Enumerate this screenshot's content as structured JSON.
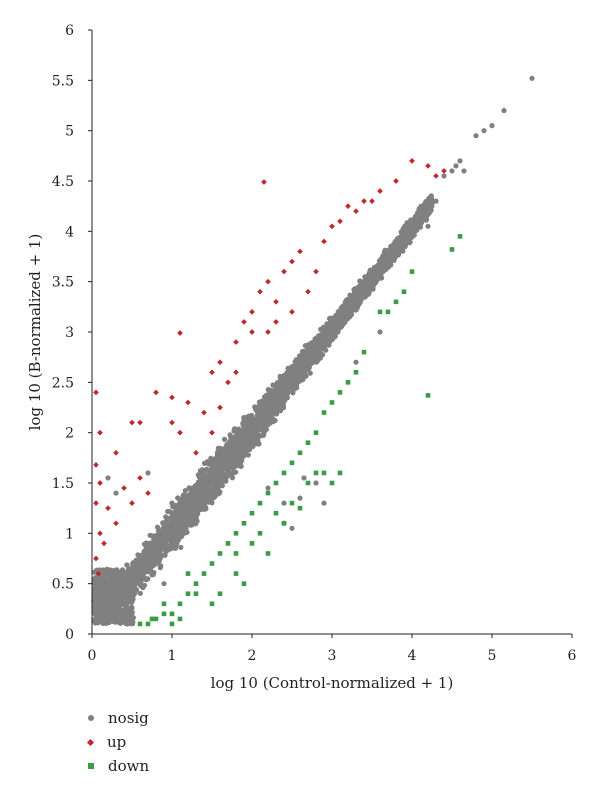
{
  "chart_data": {
    "type": "scatter",
    "xlabel": "log 10 (Control-normalized + 1)",
    "ylabel": "log 10 (B-normalized + 1)",
    "xlim": [
      0,
      6
    ],
    "ylim": [
      0,
      6
    ],
    "xticks": [
      "0",
      "1",
      "2",
      "3",
      "4",
      "5",
      "6"
    ],
    "yticks": [
      "0",
      "0.5",
      "1",
      "1.5",
      "2",
      "2.5",
      "3",
      "3.5",
      "4",
      "4.5",
      "5",
      "5.5",
      "6"
    ],
    "grid": false,
    "legend_position": "bottom-left",
    "series": [
      {
        "name": "nosig",
        "color": "#808080",
        "marker": "circle",
        "trend": "dense band along y = x from (0,0) to (4.2,4.3)",
        "points": [
          [
            4.4,
            4.55
          ],
          [
            4.5,
            4.6
          ],
          [
            4.55,
            4.65
          ],
          [
            4.6,
            4.7
          ],
          [
            4.65,
            4.6
          ],
          [
            4.8,
            4.95
          ],
          [
            4.9,
            5.0
          ],
          [
            5.0,
            5.05
          ],
          [
            5.15,
            5.2
          ],
          [
            5.5,
            5.52
          ],
          [
            0.2,
            1.55
          ],
          [
            0.3,
            1.4
          ],
          [
            0.7,
            1.6
          ],
          [
            1.0,
            1.3
          ],
          [
            0.9,
            0.5
          ],
          [
            2.2,
            1.45
          ],
          [
            2.4,
            1.3
          ],
          [
            2.4,
            1.1
          ],
          [
            2.5,
            1.05
          ],
          [
            2.6,
            1.35
          ],
          [
            2.65,
            1.55
          ],
          [
            2.8,
            1.5
          ],
          [
            2.9,
            1.3
          ],
          [
            3.3,
            2.7
          ],
          [
            3.6,
            3.0
          ],
          [
            4.2,
            4.05
          ],
          [
            4.3,
            4.3
          ]
        ]
      },
      {
        "name": "up",
        "color": "#c1272d",
        "marker": "diamond",
        "points": [
          [
            0.05,
            1.68
          ],
          [
            0.05,
            2.4
          ],
          [
            0.1,
            1.5
          ],
          [
            0.05,
            1.3
          ],
          [
            0.1,
            1.0
          ],
          [
            0.15,
            0.9
          ],
          [
            0.05,
            0.75
          ],
          [
            0.08,
            0.6
          ],
          [
            0.2,
            1.25
          ],
          [
            0.3,
            1.1
          ],
          [
            0.4,
            1.45
          ],
          [
            0.5,
            1.3
          ],
          [
            0.1,
            2.0
          ],
          [
            0.3,
            1.8
          ],
          [
            0.6,
            2.1
          ],
          [
            0.8,
            2.4
          ],
          [
            1.0,
            2.35
          ],
          [
            1.1,
            2.99
          ],
          [
            1.0,
            2.1
          ],
          [
            1.2,
            2.3
          ],
          [
            1.4,
            2.2
          ],
          [
            1.5,
            2.6
          ],
          [
            1.6,
            2.7
          ],
          [
            1.7,
            2.5
          ],
          [
            1.8,
            2.9
          ],
          [
            1.9,
            3.1
          ],
          [
            2.0,
            3.2
          ],
          [
            2.1,
            3.4
          ],
          [
            2.0,
            3.0
          ],
          [
            2.2,
            3.0
          ],
          [
            2.3,
            3.3
          ],
          [
            2.4,
            3.6
          ],
          [
            2.5,
            3.7
          ],
          [
            2.6,
            3.8
          ],
          [
            2.2,
            3.5
          ],
          [
            2.3,
            3.1
          ],
          [
            2.5,
            3.2
          ],
          [
            2.7,
            3.4
          ],
          [
            2.8,
            3.6
          ],
          [
            2.9,
            3.9
          ],
          [
            3.0,
            4.05
          ],
          [
            3.1,
            4.1
          ],
          [
            3.2,
            4.25
          ],
          [
            3.3,
            4.2
          ],
          [
            3.4,
            4.3
          ],
          [
            3.5,
            4.3
          ],
          [
            3.6,
            4.4
          ],
          [
            3.8,
            4.5
          ],
          [
            2.15,
            4.49
          ],
          [
            4.0,
            4.7
          ],
          [
            4.2,
            4.65
          ],
          [
            4.3,
            4.55
          ],
          [
            4.4,
            4.6
          ],
          [
            1.3,
            1.8
          ],
          [
            0.7,
            1.4
          ],
          [
            0.5,
            2.1
          ],
          [
            0.6,
            1.55
          ],
          [
            1.1,
            2.0
          ],
          [
            1.5,
            2.0
          ],
          [
            1.6,
            2.25
          ],
          [
            1.8,
            2.6
          ]
        ]
      },
      {
        "name": "down",
        "color": "#3a9d44",
        "marker": "square",
        "points": [
          [
            0.6,
            0.1
          ],
          [
            0.7,
            0.1
          ],
          [
            0.8,
            0.15
          ],
          [
            0.9,
            0.2
          ],
          [
            1.0,
            0.1
          ],
          [
            1.1,
            0.3
          ],
          [
            1.2,
            0.4
          ],
          [
            1.3,
            0.5
          ],
          [
            1.4,
            0.6
          ],
          [
            1.5,
            0.7
          ],
          [
            1.6,
            0.8
          ],
          [
            1.7,
            0.9
          ],
          [
            1.8,
            1.0
          ],
          [
            1.9,
            1.1
          ],
          [
            2.0,
            1.2
          ],
          [
            2.1,
            1.3
          ],
          [
            2.2,
            1.4
          ],
          [
            2.3,
            1.5
          ],
          [
            2.4,
            1.6
          ],
          [
            2.5,
            1.7
          ],
          [
            2.6,
            1.8
          ],
          [
            2.7,
            1.9
          ],
          [
            2.8,
            2.0
          ],
          [
            2.9,
            2.2
          ],
          [
            3.0,
            2.3
          ],
          [
            3.1,
            2.4
          ],
          [
            3.2,
            2.5
          ],
          [
            3.3,
            2.6
          ],
          [
            3.4,
            2.8
          ],
          [
            3.6,
            3.2
          ],
          [
            3.7,
            3.2
          ],
          [
            3.8,
            3.3
          ],
          [
            3.9,
            3.4
          ],
          [
            4.0,
            3.6
          ],
          [
            4.2,
            2.37
          ],
          [
            4.5,
            3.82
          ],
          [
            4.6,
            3.95
          ],
          [
            1.5,
            0.3
          ],
          [
            1.8,
            0.6
          ],
          [
            2.0,
            0.9
          ],
          [
            1.9,
            0.5
          ],
          [
            2.1,
            1.0
          ],
          [
            2.3,
            1.2
          ],
          [
            2.2,
            0.8
          ],
          [
            2.5,
            1.3
          ],
          [
            2.7,
            1.5
          ],
          [
            2.8,
            1.6
          ],
          [
            2.9,
            1.6
          ],
          [
            3.0,
            1.5
          ],
          [
            3.1,
            1.6
          ],
          [
            2.6,
            1.25
          ],
          [
            2.4,
            1.1
          ],
          [
            1.2,
            0.6
          ],
          [
            1.3,
            0.4
          ],
          [
            1.6,
            0.4
          ],
          [
            1.8,
            0.8
          ],
          [
            0.9,
            0.3
          ],
          [
            1.1,
            0.15
          ],
          [
            1.0,
            0.2
          ],
          [
            0.75,
            0.15
          ]
        ]
      }
    ]
  },
  "legend": {
    "items": [
      {
        "label": "nosig",
        "color": "#808080"
      },
      {
        "label": "up",
        "color": "#c1272d"
      },
      {
        "label": "down",
        "color": "#3a9d44"
      }
    ]
  }
}
